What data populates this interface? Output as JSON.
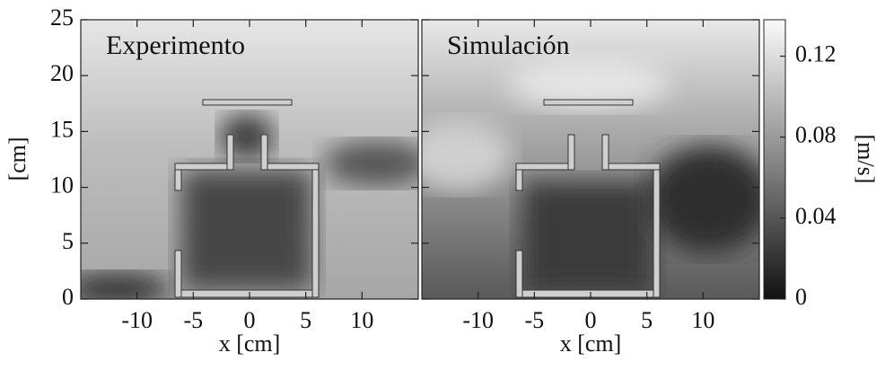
{
  "chart_data": [
    {
      "type": "heatmap",
      "title": "Experimento",
      "xlabel": "x [cm]",
      "ylabel": "[cm]",
      "xlim": [
        -15,
        15
      ],
      "xticks": [
        -10,
        -5,
        0,
        5,
        10
      ],
      "ylim": [
        0,
        25
      ],
      "yticks": [
        0,
        5,
        10,
        15,
        20,
        25
      ]
    },
    {
      "type": "heatmap",
      "title": "Simulación",
      "xlabel": "x [cm]",
      "xlim": [
        -15,
        15
      ],
      "xticks": [
        -10,
        -5,
        0,
        5,
        10
      ],
      "ylim": [
        0,
        25
      ]
    }
  ],
  "colorbar": {
    "label": "[m/s]",
    "lim": [
      0,
      0.138
    ],
    "ticks": [
      0,
      0.04,
      0.08,
      0.12
    ]
  }
}
